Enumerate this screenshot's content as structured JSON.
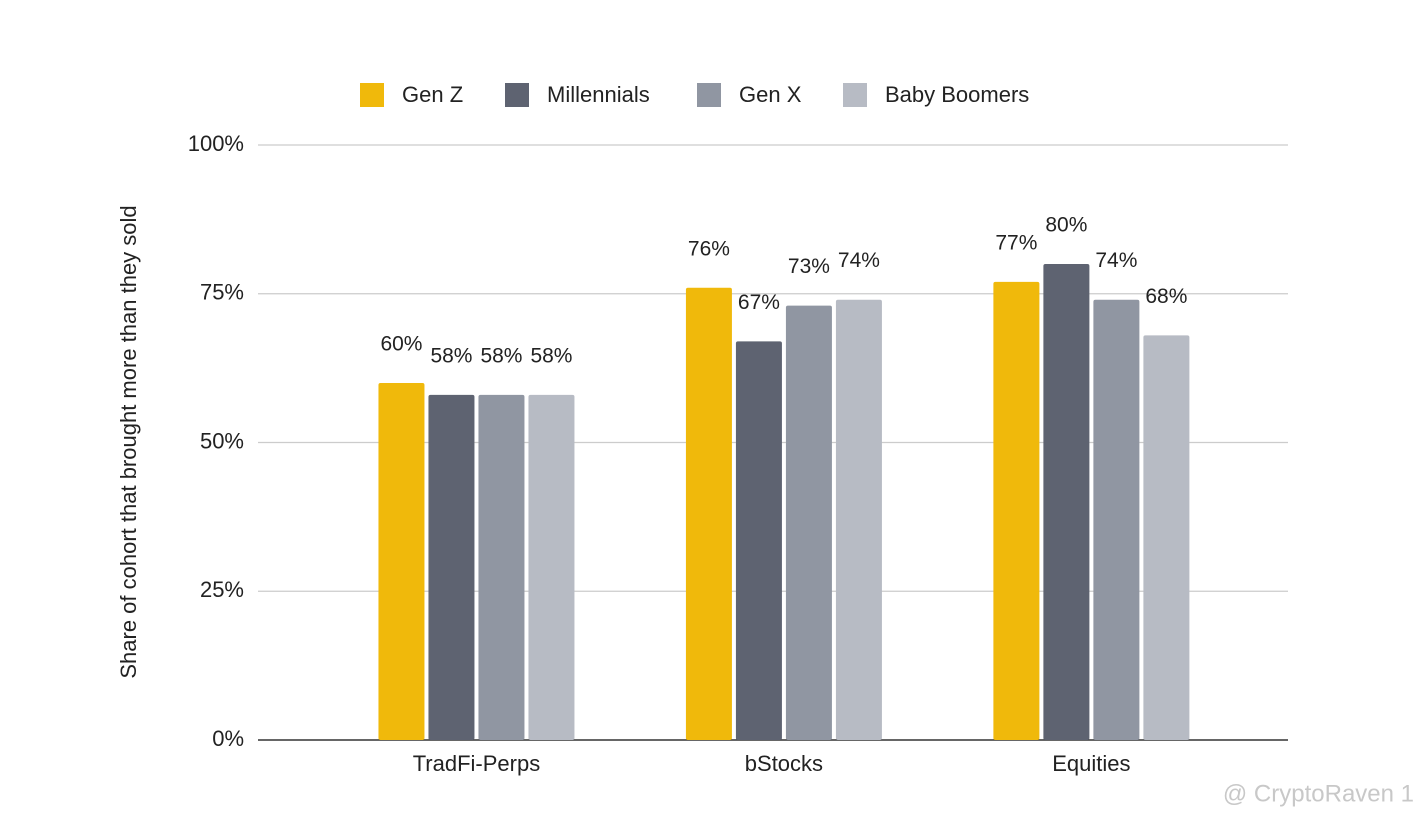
{
  "chart_data": {
    "type": "bar",
    "y_label": "Share of cohort that brought more than they sold",
    "categories": [
      "TradFi-Perps",
      "bStocks",
      "Equities"
    ],
    "series": [
      {
        "name": "Gen Z",
        "color": "#f0b90b",
        "values": [
          60,
          76,
          77
        ],
        "value_labels": [
          "60%",
          "76%",
          "77%"
        ]
      },
      {
        "name": "Millennials",
        "color": "#5e6371",
        "values": [
          58,
          67,
          80
        ],
        "value_labels": [
          "58%",
          "67%",
          "80%"
        ]
      },
      {
        "name": "Gen X",
        "color": "#9096a2",
        "values": [
          58,
          73,
          74
        ],
        "value_labels": [
          "58%",
          "73%",
          "74%"
        ]
      },
      {
        "name": "Baby Boomers",
        "color": "#b7bbc4",
        "values": [
          58,
          74,
          68
        ],
        "value_labels": [
          "58%",
          "74%",
          "68%"
        ]
      }
    ],
    "ylim": [
      0,
      100
    ],
    "yticks": [
      {
        "value": 0,
        "label": "0%"
      },
      {
        "value": 25,
        "label": "25%"
      },
      {
        "value": 50,
        "label": "50%"
      },
      {
        "value": 75,
        "label": "75%"
      },
      {
        "value": 100,
        "label": "100%"
      }
    ],
    "grid": true,
    "legend": "top",
    "watermark": "@ CryptoRaven 1"
  }
}
